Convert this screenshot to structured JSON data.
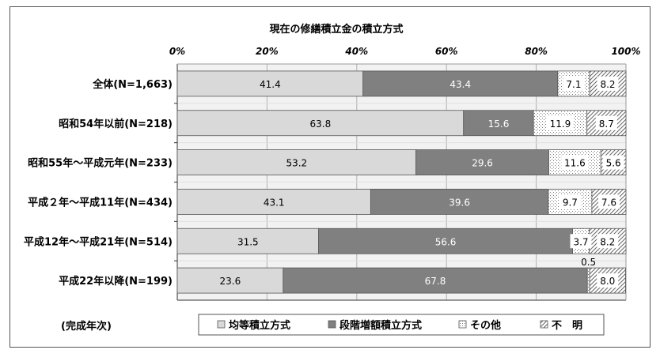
{
  "chart_data": {
    "type": "bar",
    "orientation": "horizontal",
    "stacked": "percent",
    "title": "現在の修繕積立金の積立方式",
    "xlim": [
      0,
      100
    ],
    "xticks": [
      "0%",
      "20%",
      "40%",
      "60%",
      "80%",
      "100%"
    ],
    "categories": [
      "全体(N=1,663)",
      "昭和54年以前(N=218)",
      "昭和55年～平成元年(N=233)",
      "平成２年～平成11年(N=434)",
      "平成12年～平成21年(N=514)",
      "平成22年以降(N=199)"
    ],
    "series": [
      {
        "name": "均等積立方式",
        "color": "#d9d9d9",
        "fill": "solid",
        "values": [
          41.4,
          63.8,
          53.2,
          43.1,
          31.5,
          23.6
        ]
      },
      {
        "name": "段階増額積立方式",
        "color": "#808080",
        "fill": "solid",
        "values": [
          43.4,
          15.6,
          29.6,
          39.6,
          56.6,
          67.8
        ]
      },
      {
        "name": "その他",
        "color": "#ffffff",
        "fill": "dots",
        "values": [
          7.1,
          11.9,
          11.6,
          9.7,
          3.7,
          0.5
        ]
      },
      {
        "name": "不　明",
        "color": "#ffffff",
        "fill": "hatch",
        "values": [
          8.2,
          8.7,
          5.6,
          7.6,
          8.2,
          8.0
        ]
      }
    ],
    "value_labels": [
      [
        "41.4",
        "43.4",
        "7.1",
        "8.2"
      ],
      [
        "63.8",
        "15.6",
        "11.9",
        "8.7"
      ],
      [
        "53.2",
        "29.6",
        "11.6",
        "5.6"
      ],
      [
        "43.1",
        "39.6",
        "9.7",
        "7.6"
      ],
      [
        "31.5",
        "56.6",
        "3.7",
        "8.2"
      ],
      [
        "23.6",
        "67.8",
        "0.5",
        "8.0"
      ]
    ],
    "grid": true,
    "legend_position": "bottom",
    "category_group_label": "(完成年次)"
  }
}
